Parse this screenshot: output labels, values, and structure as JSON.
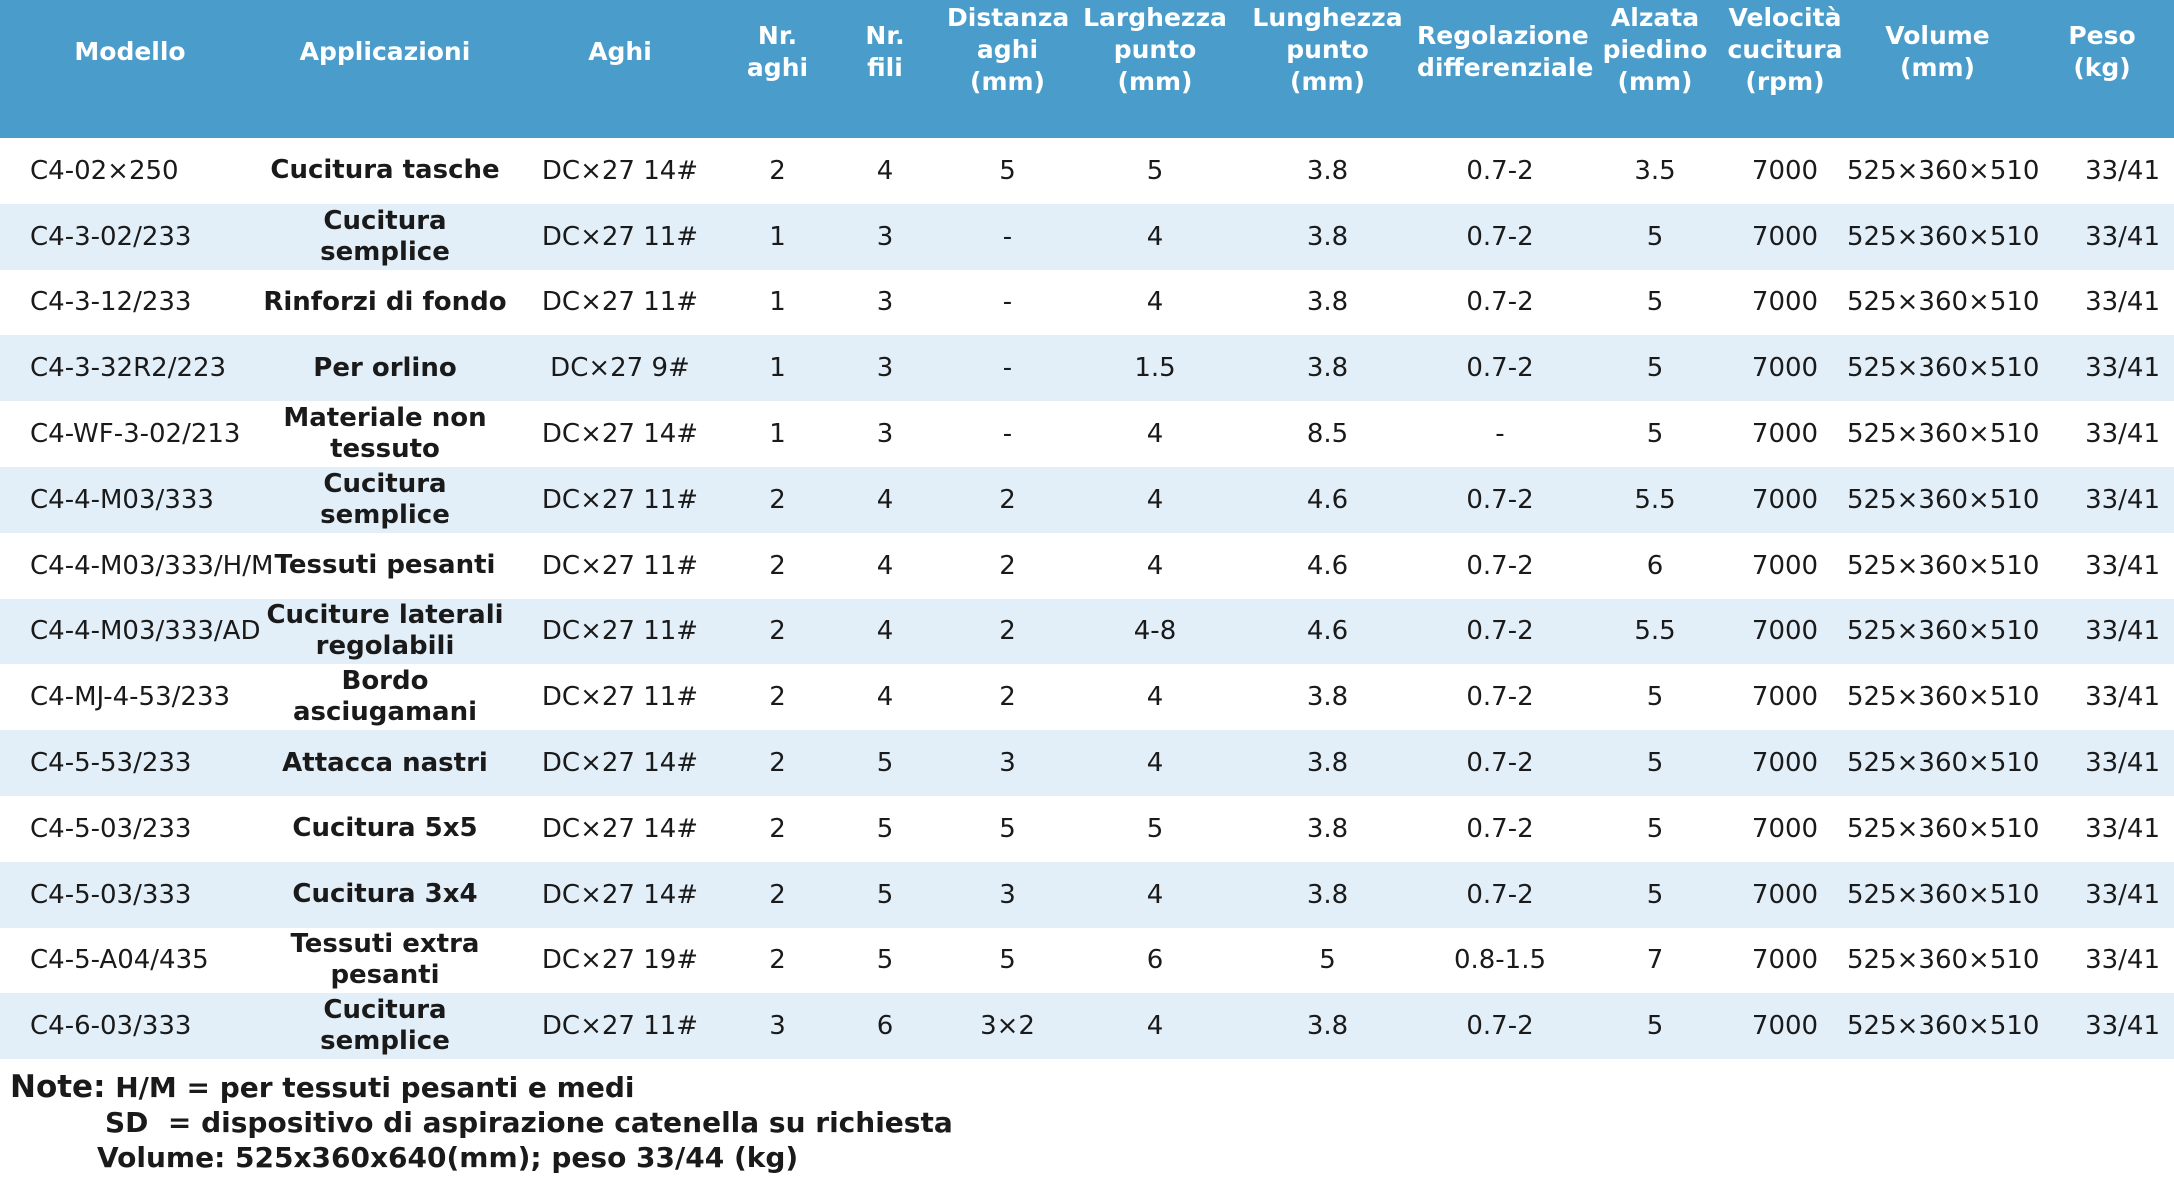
{
  "table": {
    "headers": [
      "Modello",
      "Applicazioni",
      "Aghi",
      "Nr.\naghi",
      "Nr.\nfili",
      "Distanza\naghi\n(mm)",
      "Larghezza\npunto\n(mm)",
      "Lunghezza\npunto\n(mm)",
      "Regolazione\ndifferenziale",
      "Alzata\npiedino\n(mm)",
      "Velocità\ncucitura\n(rpm)",
      "Volume\n(mm)",
      "Peso\n(kg)"
    ],
    "rows": [
      [
        "C4-02×250",
        "Cucitura tasche",
        "DC×27 14#",
        "2",
        "4",
        "5",
        "5",
        "3.8",
        "0.7-2",
        "3.5",
        "7000",
        "525×360×510",
        "33/41"
      ],
      [
        "C4-3-02/233",
        "Cucitura semplice",
        "DC×27 11#",
        "1",
        "3",
        "-",
        "4",
        "3.8",
        "0.7-2",
        "5",
        "7000",
        "525×360×510",
        "33/41"
      ],
      [
        "C4-3-12/233",
        "Rinforzi di fondo",
        "DC×27 11#",
        "1",
        "3",
        "-",
        "4",
        "3.8",
        "0.7-2",
        "5",
        "7000",
        "525×360×510",
        "33/41"
      ],
      [
        "C4-3-32R2/223",
        "Per orlino",
        "DC×27 9#",
        "1",
        "3",
        "-",
        "1.5",
        "3.8",
        "0.7-2",
        "5",
        "7000",
        "525×360×510",
        "33/41"
      ],
      [
        "C4-WF-3-02/213",
        "Materiale non tessuto",
        "DC×27 14#",
        "1",
        "3",
        "-",
        "4",
        "8.5",
        "-",
        "5",
        "7000",
        "525×360×510",
        "33/41"
      ],
      [
        "C4-4-M03/333",
        "Cucitura semplice",
        "DC×27 11#",
        "2",
        "4",
        "2",
        "4",
        "4.6",
        "0.7-2",
        "5.5",
        "7000",
        "525×360×510",
        "33/41"
      ],
      [
        "C4-4-M03/333/H/M",
        "Tessuti pesanti",
        "DC×27 11#",
        "2",
        "4",
        "2",
        "4",
        "4.6",
        "0.7-2",
        "6",
        "7000",
        "525×360×510",
        "33/41"
      ],
      [
        "C4-4-M03/333/AD",
        "Cuciture laterali regolabili",
        "DC×27 11#",
        "2",
        "4",
        "2",
        "4-8",
        "4.6",
        "0.7-2",
        "5.5",
        "7000",
        "525×360×510",
        "33/41"
      ],
      [
        "C4-MJ-4-53/233",
        "Bordo asciugamani",
        "DC×27 11#",
        "2",
        "4",
        "2",
        "4",
        "3.8",
        "0.7-2",
        "5",
        "7000",
        "525×360×510",
        "33/41"
      ],
      [
        "C4-5-53/233",
        "Attacca nastri",
        "DC×27 14#",
        "2",
        "5",
        "3",
        "4",
        "3.8",
        "0.7-2",
        "5",
        "7000",
        "525×360×510",
        "33/41"
      ],
      [
        "C4-5-03/233",
        "Cucitura 5x5",
        "DC×27 14#",
        "2",
        "5",
        "5",
        "5",
        "3.8",
        "0.7-2",
        "5",
        "7000",
        "525×360×510",
        "33/41"
      ],
      [
        "C4-5-03/333",
        "Cucitura 3x4",
        "DC×27 14#",
        "2",
        "5",
        "3",
        "4",
        "3.8",
        "0.7-2",
        "5",
        "7000",
        "525×360×510",
        "33/41"
      ],
      [
        "C4-5-A04/435",
        "Tessuti extra pesanti",
        "DC×27 19#",
        "2",
        "5",
        "5",
        "6",
        "5",
        "0.8-1.5",
        "7",
        "7000",
        "525×360×510",
        "33/41"
      ],
      [
        "C4-6-03/333",
        "Cucitura semplice",
        "DC×27 11#",
        "3",
        "6",
        "3×2",
        "4",
        "3.8",
        "0.7-2",
        "5",
        "7000",
        "525×360×510",
        "33/41"
      ]
    ]
  },
  "notes": {
    "label": "Note:",
    "lines": [
      "H/M = per tessuti pesanti e medi",
      "SD  = dispositivo di aspirazione catenella su richiesta",
      "Volume: 525x360x640(mm); peso 33/44 (kg)"
    ]
  },
  "colors": {
    "header_bg": "#4a9ccb",
    "header_text": "#ffffff",
    "row_alt_bg": "#e2eff8"
  }
}
